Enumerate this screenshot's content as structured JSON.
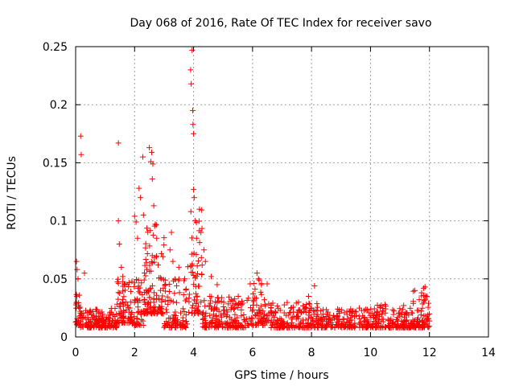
{
  "chart_data": {
    "type": "scatter",
    "title": "Day 068 of 2016, Rate Of TEC Index for receiver savo",
    "xlabel": "GPS time / hours",
    "ylabel": "ROTI / TECUs",
    "xlim": [
      0,
      14
    ],
    "ylim": [
      0,
      0.25
    ],
    "xticks": [
      0,
      2,
      4,
      6,
      8,
      10,
      12,
      14
    ],
    "yticks": [
      0,
      0.05,
      0.1,
      0.15,
      0.2,
      0.25
    ],
    "xtick_labels": [
      "0",
      "2",
      "4",
      "6",
      "8",
      "10",
      "12",
      "14"
    ],
    "ytick_labels": [
      "0",
      "0.05",
      "0.1",
      "0.15",
      "0.2",
      "0.25"
    ],
    "grid": true,
    "marker": "+",
    "color": "#ff0000",
    "data_range_hours": [
      0,
      12
    ],
    "baseline_band": [
      0.008,
      0.022
    ],
    "notable_points": [
      {
        "x": 0.03,
        "y": 0.065
      },
      {
        "x": 0.05,
        "y": 0.058
      },
      {
        "x": 0.08,
        "y": 0.05
      },
      {
        "x": 0.17,
        "y": 0.173
      },
      {
        "x": 0.19,
        "y": 0.157
      },
      {
        "x": 0.3,
        "y": 0.055
      },
      {
        "x": 1.45,
        "y": 0.167
      },
      {
        "x": 1.45,
        "y": 0.1
      },
      {
        "x": 1.48,
        "y": 0.08
      },
      {
        "x": 1.55,
        "y": 0.06
      },
      {
        "x": 1.6,
        "y": 0.052
      },
      {
        "x": 1.65,
        "y": 0.045
      },
      {
        "x": 2.0,
        "y": 0.104
      },
      {
        "x": 2.05,
        "y": 0.099
      },
      {
        "x": 2.1,
        "y": 0.085
      },
      {
        "x": 2.15,
        "y": 0.128
      },
      {
        "x": 2.2,
        "y": 0.12
      },
      {
        "x": 2.28,
        "y": 0.155
      },
      {
        "x": 2.3,
        "y": 0.105
      },
      {
        "x": 2.5,
        "y": 0.163
      },
      {
        "x": 2.55,
        "y": 0.151
      },
      {
        "x": 2.58,
        "y": 0.159
      },
      {
        "x": 2.6,
        "y": 0.136
      },
      {
        "x": 2.62,
        "y": 0.149
      },
      {
        "x": 2.65,
        "y": 0.113
      },
      {
        "x": 2.7,
        "y": 0.097
      },
      {
        "x": 2.75,
        "y": 0.085
      },
      {
        "x": 2.6,
        "y": 0.07
      },
      {
        "x": 2.8,
        "y": 0.062
      },
      {
        "x": 2.9,
        "y": 0.05
      },
      {
        "x": 3.05,
        "y": 0.045
      },
      {
        "x": 3.2,
        "y": 0.075
      },
      {
        "x": 3.25,
        "y": 0.09
      },
      {
        "x": 3.3,
        "y": 0.065
      },
      {
        "x": 3.5,
        "y": 0.06
      },
      {
        "x": 3.7,
        "y": 0.05
      },
      {
        "x": 3.9,
        "y": 0.23
      },
      {
        "x": 3.92,
        "y": 0.218
      },
      {
        "x": 3.95,
        "y": 0.247
      },
      {
        "x": 3.97,
        "y": 0.195
      },
      {
        "x": 3.98,
        "y": 0.183
      },
      {
        "x": 4.0,
        "y": 0.175
      },
      {
        "x": 4.0,
        "y": 0.127
      },
      {
        "x": 4.02,
        "y": 0.12
      },
      {
        "x": 4.05,
        "y": 0.1
      },
      {
        "x": 4.1,
        "y": 0.085
      },
      {
        "x": 4.2,
        "y": 0.11
      },
      {
        "x": 4.25,
        "y": 0.09
      },
      {
        "x": 4.35,
        "y": 0.075
      },
      {
        "x": 4.4,
        "y": 0.065
      },
      {
        "x": 4.6,
        "y": 0.052
      },
      {
        "x": 4.8,
        "y": 0.045
      },
      {
        "x": 6.15,
        "y": 0.055
      },
      {
        "x": 6.2,
        "y": 0.05
      },
      {
        "x": 6.3,
        "y": 0.045
      },
      {
        "x": 7.9,
        "y": 0.035
      },
      {
        "x": 8.1,
        "y": 0.044
      },
      {
        "x": 11.5,
        "y": 0.04
      },
      {
        "x": 11.8,
        "y": 0.042
      },
      {
        "x": 11.85,
        "y": 0.043
      }
    ],
    "clusters": [
      {
        "x_range": [
          0.0,
          0.15
        ],
        "y_range": [
          0.01,
          0.04
        ],
        "count": 25
      },
      {
        "x_range": [
          0.15,
          1.4
        ],
        "y_range": [
          0.008,
          0.025
        ],
        "count": 160
      },
      {
        "x_range": [
          1.4,
          1.9
        ],
        "y_range": [
          0.012,
          0.05
        ],
        "count": 70
      },
      {
        "x_range": [
          1.9,
          2.3
        ],
        "y_range": [
          0.01,
          0.05
        ],
        "count": 50
      },
      {
        "x_range": [
          2.3,
          3.0
        ],
        "y_range": [
          0.02,
          0.1
        ],
        "count": 110
      },
      {
        "x_range": [
          3.0,
          3.8
        ],
        "y_range": [
          0.008,
          0.05
        ],
        "count": 90
      },
      {
        "x_range": [
          3.8,
          4.3
        ],
        "y_range": [
          0.02,
          0.11
        ],
        "count": 60
      },
      {
        "x_range": [
          4.3,
          5.8
        ],
        "y_range": [
          0.008,
          0.035
        ],
        "count": 170
      },
      {
        "x_range": [
          5.8,
          6.5
        ],
        "y_range": [
          0.01,
          0.05
        ],
        "count": 80
      },
      {
        "x_range": [
          6.5,
          8.2
        ],
        "y_range": [
          0.008,
          0.03
        ],
        "count": 180
      },
      {
        "x_range": [
          8.2,
          10.2
        ],
        "y_range": [
          0.008,
          0.025
        ],
        "count": 200
      },
      {
        "x_range": [
          10.2,
          11.4
        ],
        "y_range": [
          0.008,
          0.028
        ],
        "count": 130
      },
      {
        "x_range": [
          11.4,
          12.0
        ],
        "y_range": [
          0.008,
          0.04
        ],
        "count": 80
      }
    ]
  }
}
